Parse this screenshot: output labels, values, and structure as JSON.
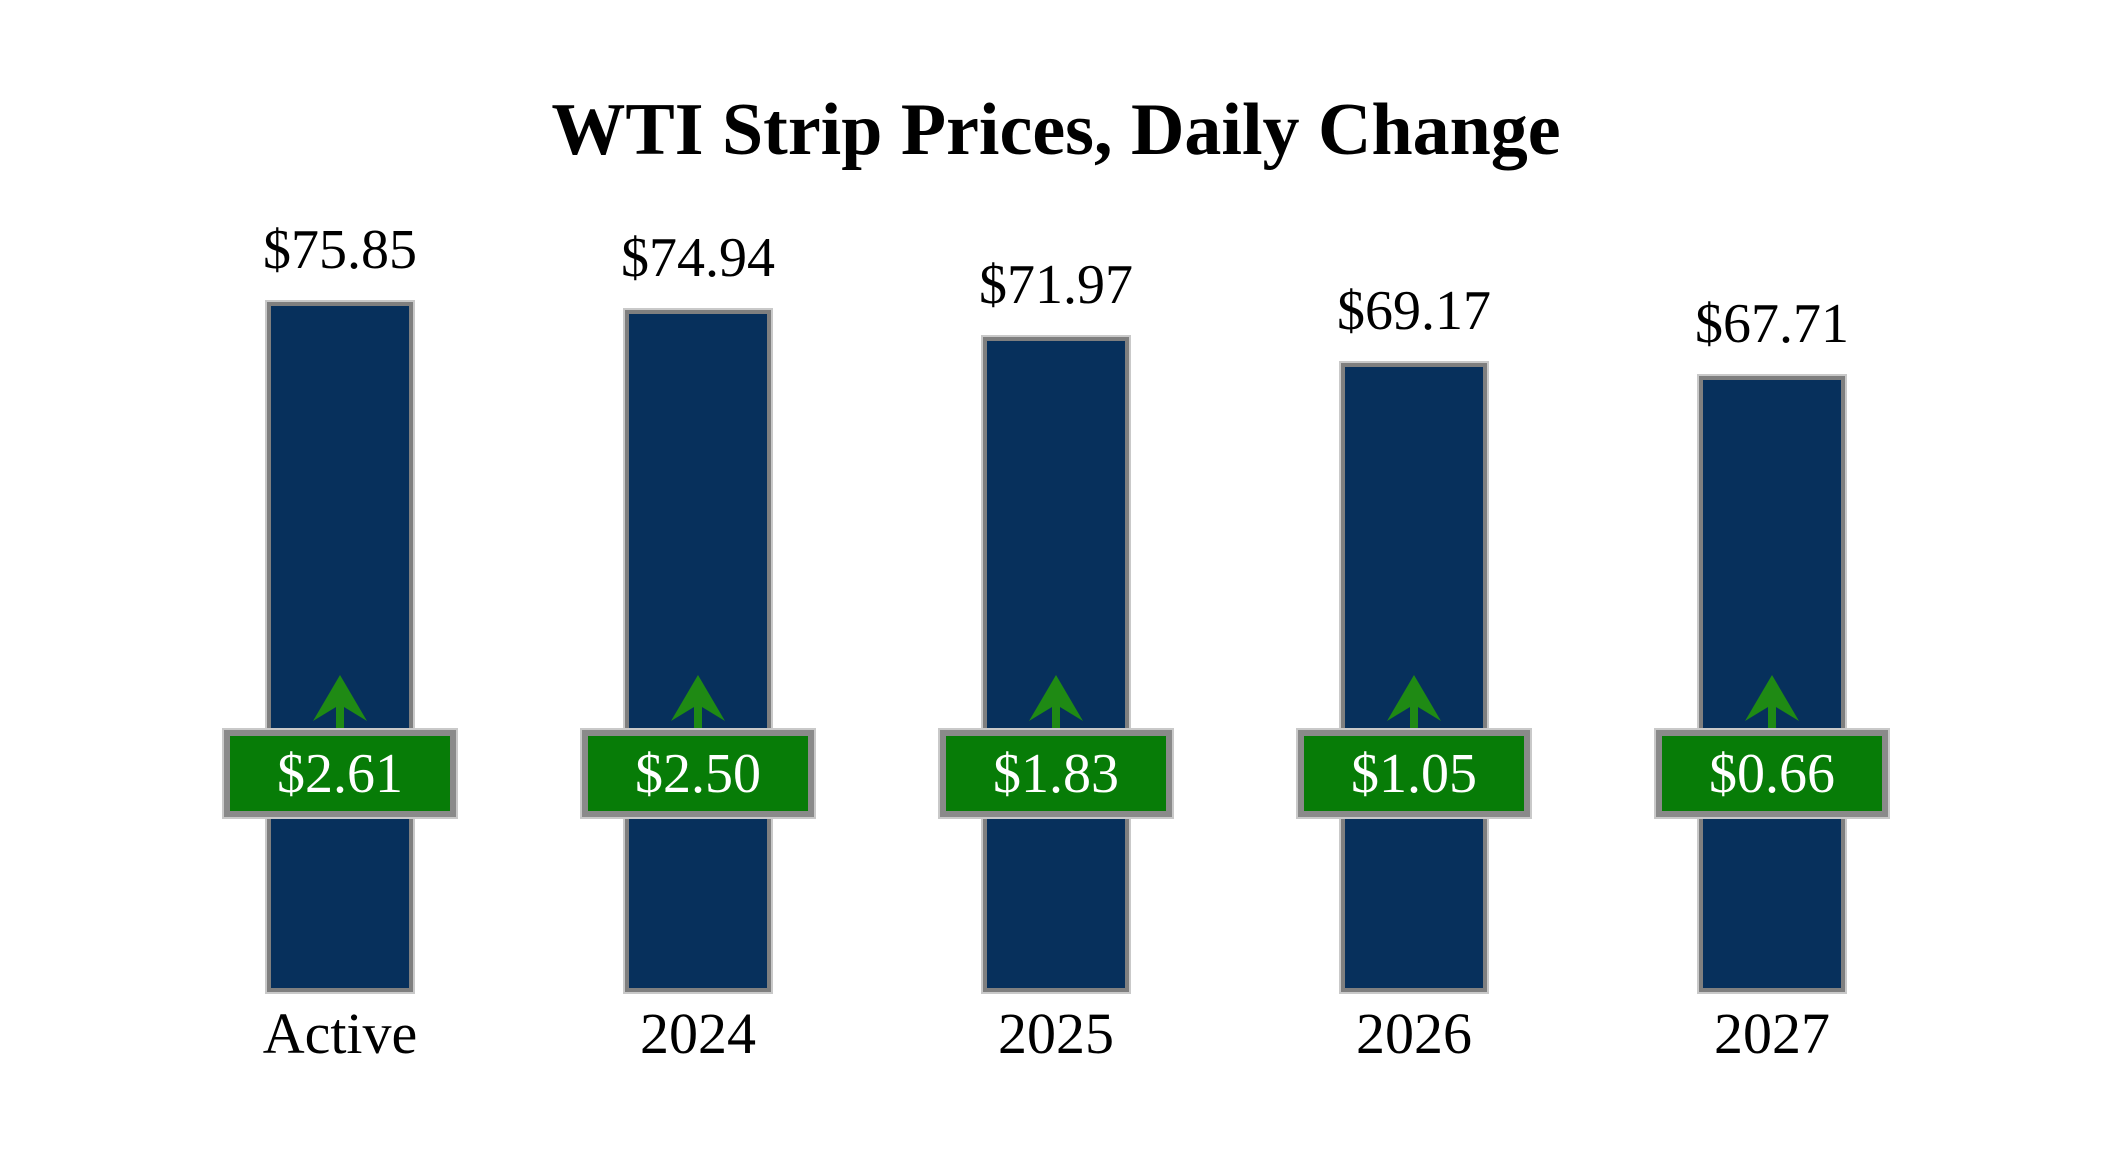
{
  "title": "WTI Strip Prices, Daily Change",
  "chart_data": {
    "type": "bar",
    "title": "WTI Strip Prices, Daily Change",
    "categories": [
      "Active",
      "2024",
      "2025",
      "2026",
      "2027"
    ],
    "series": [
      {
        "name": "strip_price",
        "values": [
          75.85,
          74.94,
          71.97,
          69.17,
          67.71
        ]
      },
      {
        "name": "daily_change",
        "values": [
          2.61,
          2.5,
          1.83,
          1.05,
          0.66
        ]
      }
    ],
    "price_labels": [
      "$75.85",
      "$74.94",
      "$71.97",
      "$69.17",
      "$67.71"
    ],
    "change_labels": [
      "$2.61",
      "$2.50",
      "$1.83",
      "$1.05",
      "$0.66"
    ],
    "change_direction": "up",
    "xlabel": "",
    "ylabel": "",
    "ylim": [
      0,
      75.85
    ],
    "grid": false,
    "legend": "none",
    "axes_visible": false
  },
  "colors": {
    "bar_fill": "#07305c",
    "bar_border": "#7f7f7f",
    "badge_fill": "#077c07",
    "badge_border": "#8a8a8a",
    "badge_text": "#ffffff",
    "arrow_green": "#1f8a14",
    "label_text": "#000000",
    "background": "#ffffff"
  },
  "icons": {
    "up_arrow": "up-arrow-icon"
  }
}
